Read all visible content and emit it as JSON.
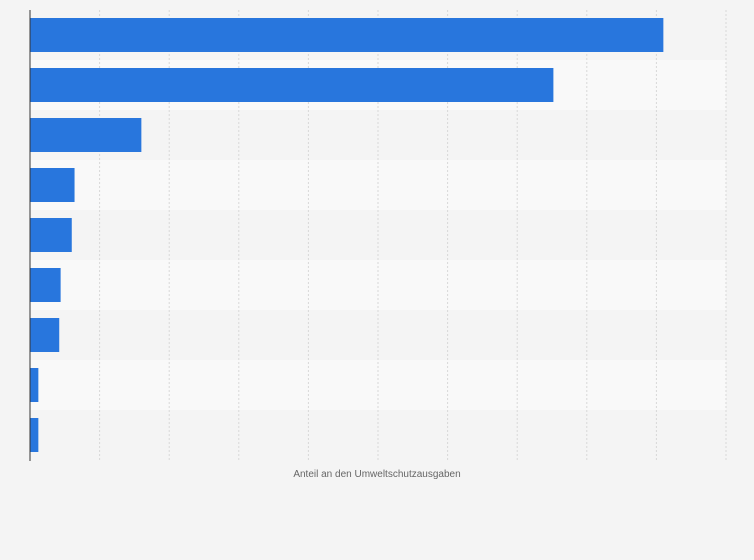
{
  "chart_data": {
    "type": "bar",
    "orientation": "horizontal",
    "title": "",
    "xlabel": "Anteil an den Umweltschutzausgaben",
    "ylabel": "",
    "categories": [
      "",
      "",
      "",
      "",
      "",
      "",
      "",
      "",
      ""
    ],
    "values": [
      45.5,
      37.6,
      8.0,
      3.2,
      3.0,
      2.2,
      2.1,
      0.6,
      0.6
    ],
    "xlim": [
      0,
      50
    ],
    "grid": true,
    "legend": "none",
    "bar_color": "#2876dd",
    "stripe_colors": [
      "#f4f4f4",
      "#f9f9f9"
    ]
  }
}
